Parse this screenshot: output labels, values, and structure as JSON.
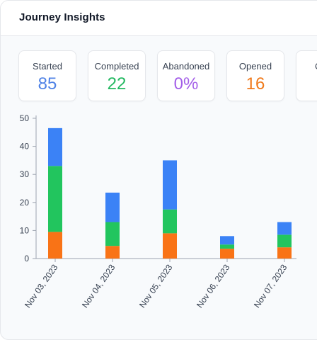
{
  "panel": {
    "title": "Journey Insights"
  },
  "stats": [
    {
      "label": "Started",
      "value": "85",
      "color": "#4f82e6"
    },
    {
      "label": "Completed",
      "value": "22",
      "color": "#22b860"
    },
    {
      "label": "Abandoned",
      "value": "0%",
      "color": "#a35ee8"
    },
    {
      "label": "Opened",
      "value": "16",
      "color": "#f07a1c"
    },
    {
      "label": "C",
      "value": "",
      "color": "#374151"
    }
  ],
  "chart_data": {
    "type": "bar",
    "stacked": true,
    "categories": [
      "Nov 03, 2023",
      "Nov 04, 2023",
      "Nov 05, 2023",
      "Nov 06, 2023",
      "Nov 07, 2023"
    ],
    "series": [
      {
        "color": "#f97316",
        "values": [
          9.5,
          4.5,
          9,
          3.5,
          4
        ]
      },
      {
        "color": "#22c55e",
        "values": [
          23.5,
          8.5,
          8.5,
          1.5,
          4.5
        ]
      },
      {
        "color": "#3b82f6",
        "values": [
          13.5,
          10.5,
          17.5,
          3,
          4.5
        ]
      }
    ],
    "ylim": [
      0,
      50
    ],
    "yticks": [
      0,
      10,
      20,
      30,
      40,
      50
    ],
    "grid": false
  }
}
